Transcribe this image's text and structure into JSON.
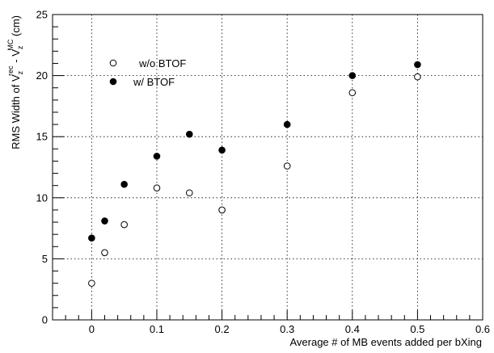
{
  "chart_data": {
    "type": "scatter",
    "x_axis_label": "Average # of MB events added per bXing",
    "y_axis_label": {
      "prefix": "RMS Width of V",
      "sub1": "z",
      "sup1": "rec",
      "middle": " - V",
      "sub2": "z",
      "sup2": "MC",
      "suffix": " (cm)"
    },
    "xlim": [
      -0.06,
      0.6
    ],
    "ylim": [
      0,
      25
    ],
    "x_ticks": [
      0,
      0.1,
      0.2,
      0.3,
      0.4,
      0.5,
      0.6
    ],
    "x_tick_labels": [
      "0",
      "0.1",
      "0.2",
      "0.3",
      "0.4",
      "0.5",
      "0.6"
    ],
    "y_ticks": [
      0,
      5,
      10,
      15,
      20,
      25
    ],
    "y_tick_labels": [
      "0",
      "5",
      "10",
      "15",
      "20",
      "25"
    ],
    "grid": true,
    "legend_position": "top-left",
    "series": [
      {
        "name": "w/o BTOF",
        "marker": "open-circle",
        "color": "#000000",
        "x": [
          0,
          0.02,
          0.05,
          0.1,
          0.15,
          0.2,
          0.3,
          0.4,
          0.5
        ],
        "y": [
          3.0,
          5.5,
          7.8,
          10.8,
          10.4,
          9.0,
          12.6,
          18.6,
          19.9
        ]
      },
      {
        "name": "w/ BTOF",
        "marker": "filled-circle",
        "color": "#000000",
        "x": [
          0,
          0.02,
          0.05,
          0.1,
          0.15,
          0.2,
          0.3,
          0.4,
          0.5
        ],
        "y": [
          6.7,
          8.1,
          11.1,
          13.4,
          15.2,
          13.9,
          16.0,
          20.0,
          20.9
        ]
      }
    ]
  }
}
